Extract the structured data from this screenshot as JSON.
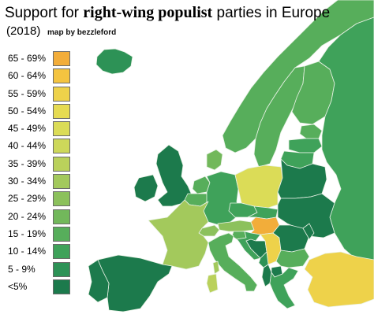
{
  "header": {
    "title_pre": "Support for ",
    "title_bold": "right-wing populist",
    "title_post": " parties in Europe",
    "year": "(2018)",
    "credit": "map by bezzleford"
  },
  "legend": [
    {
      "label": "65 - 69%",
      "color": "#f2ad3a"
    },
    {
      "label": "60 - 64%",
      "color": "#f4c440"
    },
    {
      "label": "55 - 59%",
      "color": "#eed24a"
    },
    {
      "label": "50 - 54%",
      "color": "#e6db52"
    },
    {
      "label": "45 - 49%",
      "color": "#dbdc57"
    },
    {
      "label": "40 - 44%",
      "color": "#cdd85a"
    },
    {
      "label": "35 - 39%",
      "color": "#bad15b"
    },
    {
      "label": "30 - 34%",
      "color": "#a3c95c"
    },
    {
      "label": "25 - 29%",
      "color": "#8cc15c"
    },
    {
      "label": "20 - 24%",
      "color": "#72b85b"
    },
    {
      "label": "15 - 19%",
      "color": "#57ae5b"
    },
    {
      "label": "10 - 14%",
      "color": "#3fa25a"
    },
    {
      "label": "5 - 9%",
      "color": "#2d9256"
    },
    {
      "label": "<5%",
      "color": "#1c7a4c"
    }
  ],
  "map": {
    "sea_color": "#ffffff",
    "border_color": "#e9f2e6",
    "countries": [
      {
        "name": "Iceland",
        "bin": "5 - 9%"
      },
      {
        "name": "Norway",
        "bin": "15 - 19%"
      },
      {
        "name": "Sweden",
        "bin": "15 - 19%"
      },
      {
        "name": "Finland",
        "bin": "15 - 19%"
      },
      {
        "name": "Russia",
        "bin": "10 - 14%"
      },
      {
        "name": "Estonia",
        "bin": "15 - 19%"
      },
      {
        "name": "Latvia",
        "bin": "10 - 14%"
      },
      {
        "name": "Lithuania",
        "bin": "10 - 14%"
      },
      {
        "name": "Denmark",
        "bin": "20 - 24%"
      },
      {
        "name": "United Kingdom",
        "bin": "<5%"
      },
      {
        "name": "Ireland",
        "bin": "<5%"
      },
      {
        "name": "Netherlands",
        "bin": "15 - 19%"
      },
      {
        "name": "Belgium",
        "bin": "15 - 19%"
      },
      {
        "name": "Germany",
        "bin": "10 - 14%"
      },
      {
        "name": "Poland",
        "bin": "45 - 49%"
      },
      {
        "name": "Belarus",
        "bin": "<5%"
      },
      {
        "name": "Ukraine",
        "bin": "<5%"
      },
      {
        "name": "Czechia",
        "bin": "10 - 14%"
      },
      {
        "name": "Slovakia",
        "bin": "10 - 14%"
      },
      {
        "name": "Austria",
        "bin": "25 - 29%"
      },
      {
        "name": "Switzerland",
        "bin": "25 - 29%"
      },
      {
        "name": "Hungary",
        "bin": "65 - 69%"
      },
      {
        "name": "Slovenia",
        "bin": "15 - 19%"
      },
      {
        "name": "Croatia",
        "bin": "10 - 14%"
      },
      {
        "name": "Bosnia and Herzegovina",
        "bin": "<5%"
      },
      {
        "name": "Serbia",
        "bin": "55 - 59%"
      },
      {
        "name": "Montenegro",
        "bin": "5 - 9%"
      },
      {
        "name": "Albania",
        "bin": "<5%"
      },
      {
        "name": "North Macedonia",
        "bin": "<5%"
      },
      {
        "name": "Romania",
        "bin": "<5%"
      },
      {
        "name": "Moldova",
        "bin": "<5%"
      },
      {
        "name": "Bulgaria",
        "bin": "15 - 19%"
      },
      {
        "name": "Greece",
        "bin": "10 - 14%"
      },
      {
        "name": "Turkey",
        "bin": "55 - 59%"
      },
      {
        "name": "France",
        "bin": "30 - 34%"
      },
      {
        "name": "Spain",
        "bin": "<5%"
      },
      {
        "name": "Portugal",
        "bin": "<5%"
      },
      {
        "name": "Italy",
        "bin": "15 - 19%"
      },
      {
        "name": "Corsica",
        "bin": "30 - 34%"
      },
      {
        "name": "Sardinia",
        "bin": "35 - 39%"
      }
    ]
  }
}
